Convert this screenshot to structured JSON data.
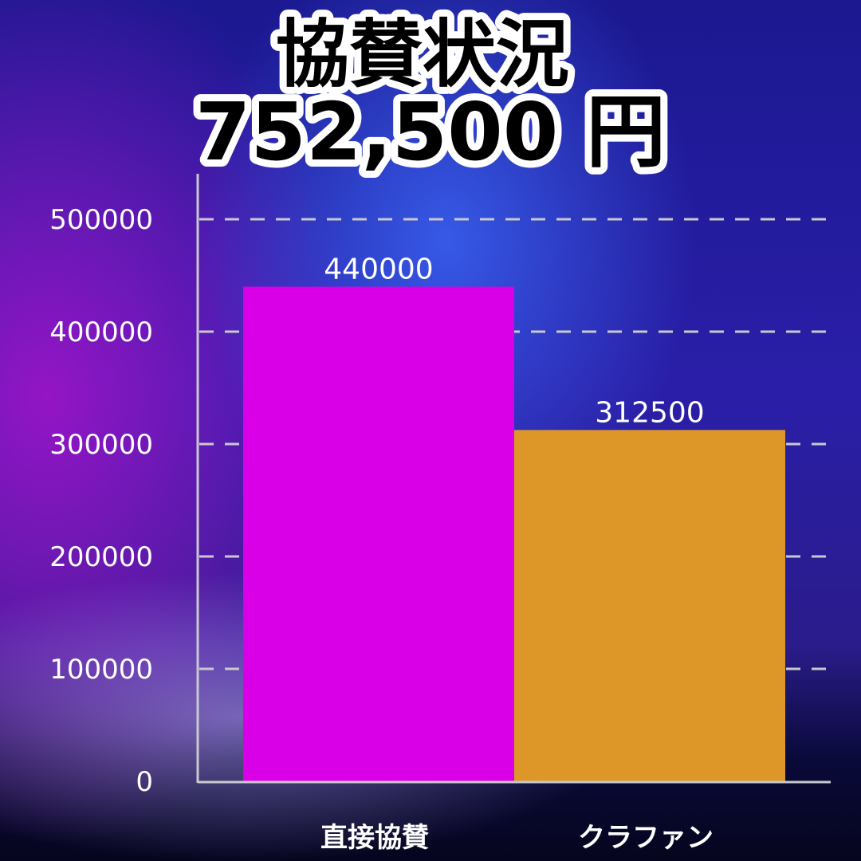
{
  "title_line1": "協賛状況",
  "title_line2": "752,500 円",
  "chart_data": {
    "type": "bar",
    "title": "協賛状況 752,500 円",
    "categories": [
      "直接協賛",
      "クラファン"
    ],
    "values": [
      440000,
      312500
    ],
    "data_labels": [
      "440000",
      "312500"
    ],
    "colors": [
      "#d900e8",
      "#dd9628"
    ],
    "ylim": [
      0,
      500000
    ],
    "yticks": [
      "0",
      "100000",
      "200000",
      "300000",
      "400000",
      "500000"
    ],
    "grid": true,
    "grid_style": "dashed",
    "legend": "none",
    "xlabel": "",
    "ylabel": ""
  }
}
